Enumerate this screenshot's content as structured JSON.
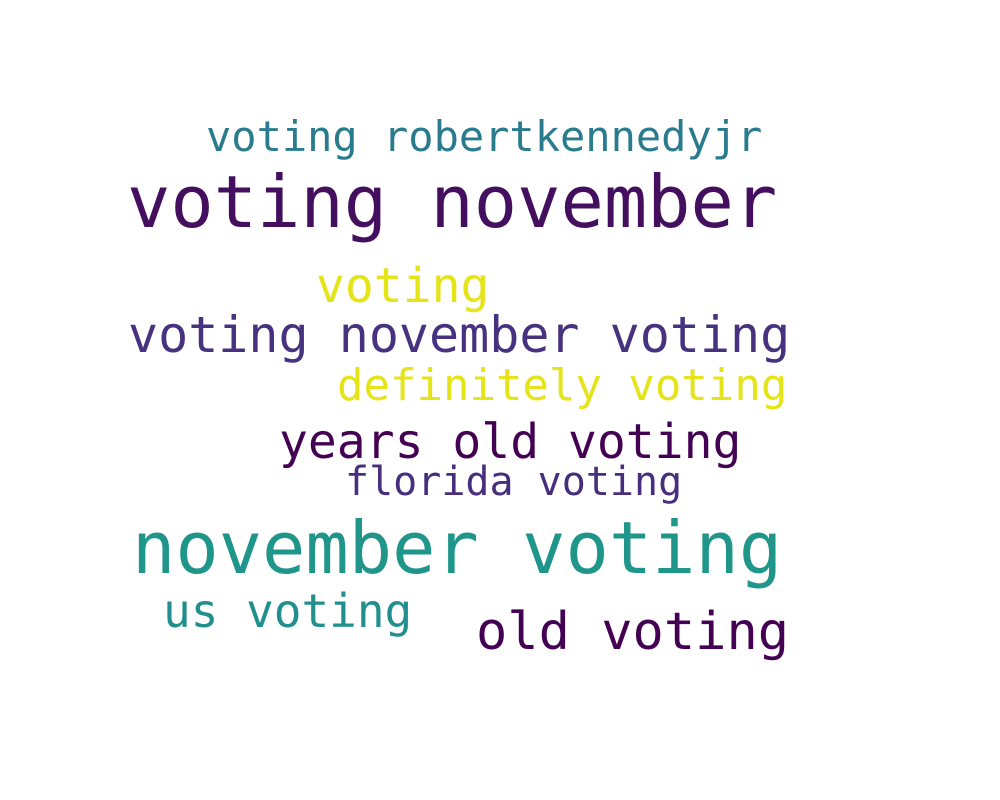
{
  "words": [
    {
      "text": "voting robertkennedyjr",
      "color": "#2a7b8e"
    },
    {
      "text": "voting november",
      "color": "#440f5f"
    },
    {
      "text": "voting",
      "color": "#e5e419"
    },
    {
      "text": "voting november voting",
      "color": "#46327e"
    },
    {
      "text": "definitely voting",
      "color": "#e5e419"
    },
    {
      "text": "years old voting",
      "color": "#440154"
    },
    {
      "text": "florida voting",
      "color": "#472f7d"
    },
    {
      "text": "november voting",
      "color": "#20968b"
    },
    {
      "text": "us voting",
      "color": "#218f8d"
    },
    {
      "text": "old voting",
      "color": "#440154"
    }
  ]
}
